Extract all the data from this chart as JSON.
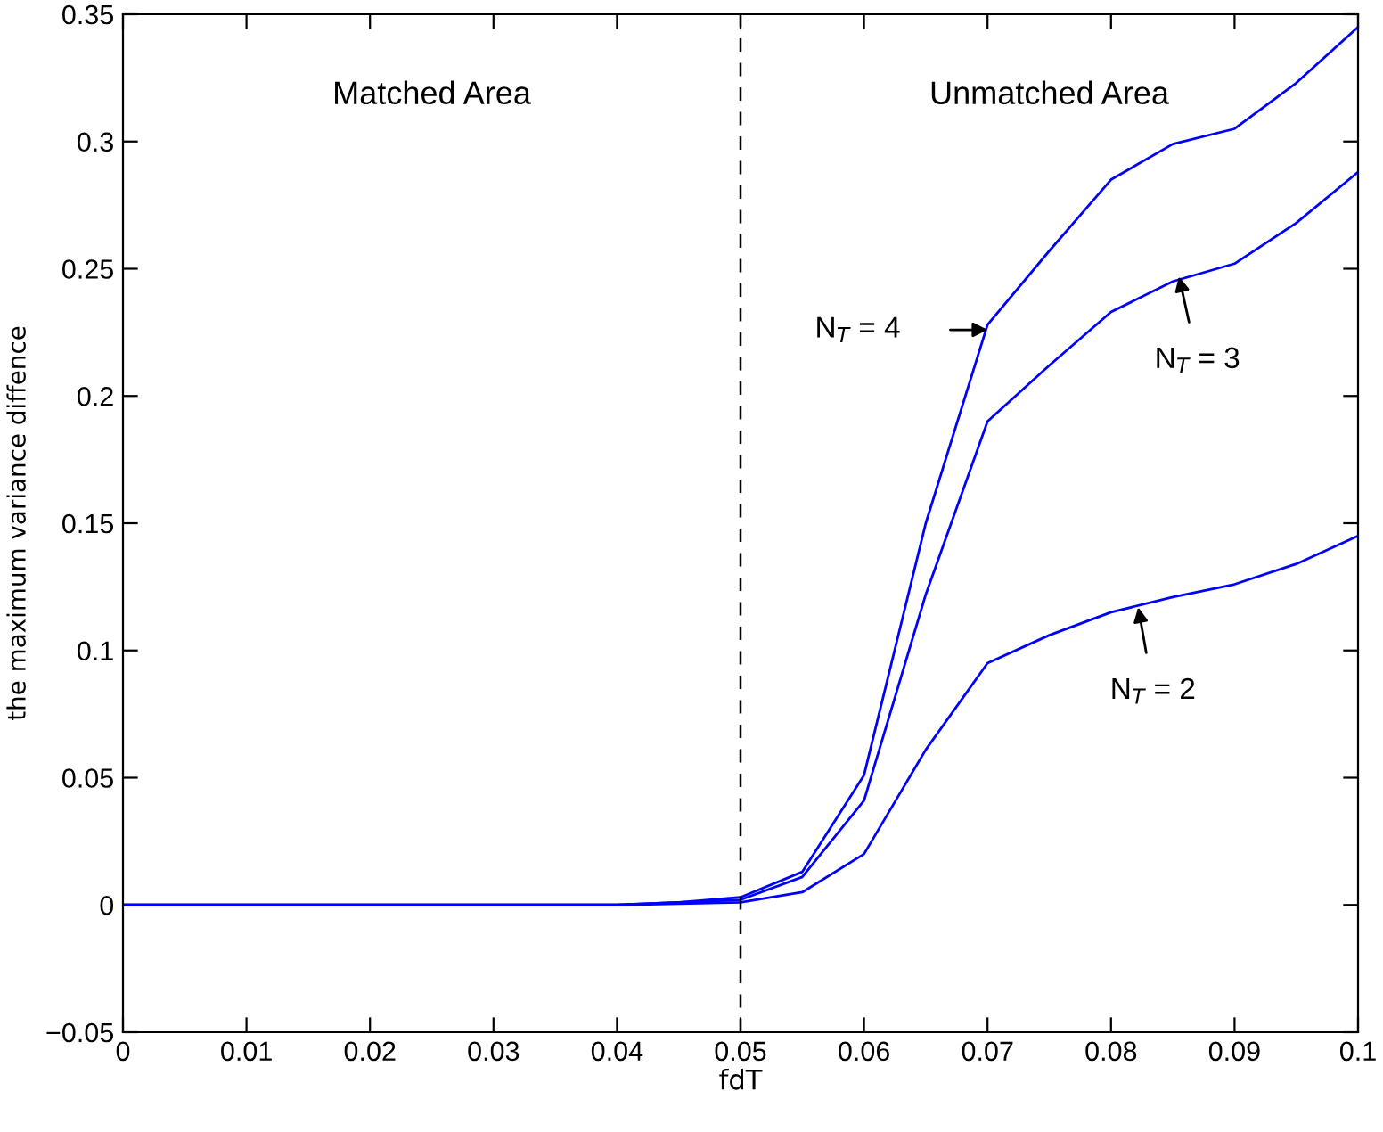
{
  "chart_data": {
    "type": "line",
    "xlabel": "fdT",
    "ylabel": "the maximum variance diffence",
    "x": [
      0,
      0.005,
      0.01,
      0.015,
      0.02,
      0.025,
      0.03,
      0.035,
      0.04,
      0.045,
      0.05,
      0.055,
      0.06,
      0.065,
      0.07,
      0.075,
      0.08,
      0.085,
      0.09,
      0.095,
      0.1
    ],
    "series": [
      {
        "color": "#0000ff",
        "values": [
          0,
          0,
          0,
          0,
          0,
          0,
          0,
          0,
          0,
          0.001,
          0.003,
          0.013,
          0.051,
          0.15,
          0.228,
          0.257,
          0.285,
          0.299,
          0.305,
          0.323,
          0.345
        ]
      },
      {
        "color": "#0000ff",
        "values": [
          0,
          0,
          0,
          0,
          0,
          0,
          0,
          0,
          0,
          0.001,
          0.002,
          0.011,
          0.041,
          0.122,
          0.19,
          0.212,
          0.233,
          0.245,
          0.252,
          0.268,
          0.288
        ]
      },
      {
        "color": "#0000ff",
        "values": [
          0,
          0,
          0,
          0,
          0,
          0,
          0,
          0,
          0,
          0.0005,
          0.001,
          0.005,
          0.02,
          0.061,
          0.095,
          0.106,
          0.115,
          0.121,
          0.126,
          0.134,
          0.145
        ]
      }
    ],
    "xlim": [
      0,
      0.1
    ],
    "xticks": [
      0,
      0.01,
      0.02,
      0.03,
      0.04,
      0.05,
      0.06,
      0.07,
      0.08,
      0.09,
      0.1
    ],
    "ylim": [
      -0.05,
      0.35
    ],
    "yticks": [
      {
        "value": -0.05,
        "label": "−0.05"
      },
      0,
      0.05,
      0.1,
      0.15,
      0.2,
      0.25,
      0.3,
      0.35
    ],
    "ref_lines": [
      {
        "axis": "x",
        "value": 0.05,
        "color": "#000000",
        "line_style": "dashed"
      }
    ],
    "annotations": [
      "Matched Area",
      "Unmatched Area",
      {
        "text": "N$_{T}$ = 4",
        "x": 0.07,
        "y": 0.226
      },
      {
        "text": "N$_{T}$ = 3",
        "x": 0.0855,
        "y": 0.247
      },
      {
        "text": "N$_{T}$ = 2",
        "x": 0.0822,
        "y": 0.117
      }
    ],
    "grid": false,
    "line_style": "solid",
    "marker": "none"
  }
}
